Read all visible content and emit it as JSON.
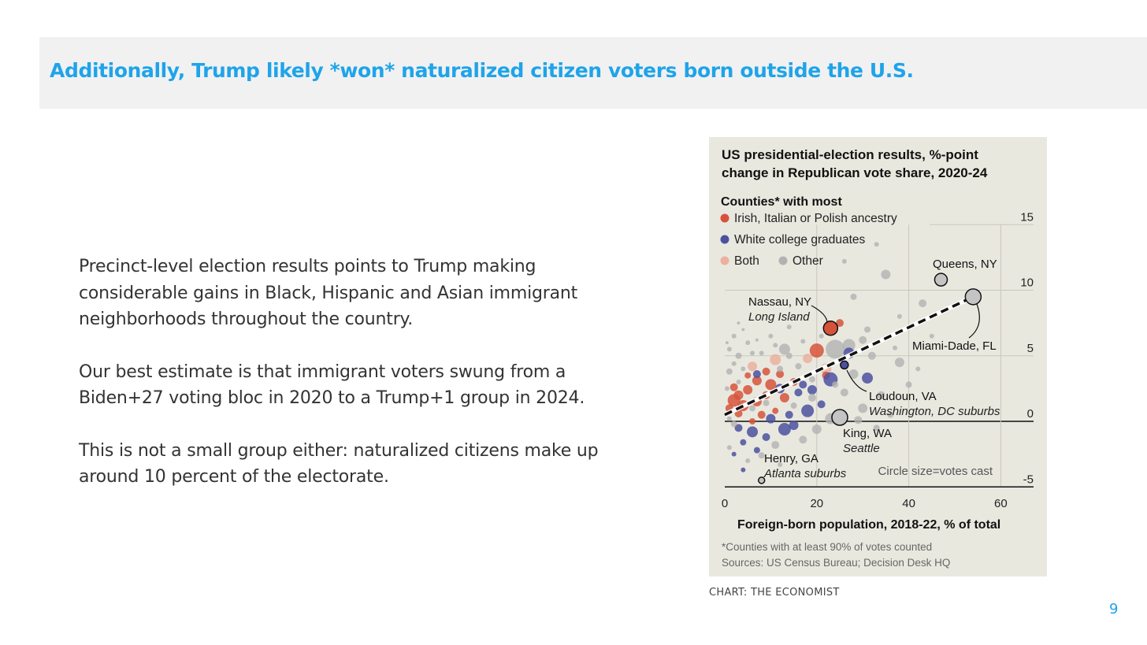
{
  "slide": {
    "title": "Additionally, Trump likely *won* naturalized citizen voters born outside the U.S.",
    "paragraphs": [
      "Precinct-level election results points to Trump making considerable gains in Black, Hispanic and Asian immigrant neighborhoods throughout the country.",
      "Our best estimate is that immigrant voters swung from a Biden+27 voting bloc in 2020 to a Trump+1 group in 2024.",
      "This is not a small group either: naturalized citizens make up around 10 percent of the electorate."
    ],
    "credit": "CHART: THE ECONOMIST",
    "page_number": "9"
  },
  "chart_data": {
    "type": "scatter",
    "title_lines": [
      "US presidential-election results, %-point",
      "change in Republican vote share, 2020-24"
    ],
    "legend_heading": "Counties* with most",
    "legend": [
      {
        "key": "irish",
        "label": "Irish, Italian or Polish ancestry",
        "color": "#d6533b"
      },
      {
        "key": "white",
        "label": "White college graduates",
        "color": "#4b51a0"
      },
      {
        "key": "both",
        "label": "Both",
        "color": "#ebb09e"
      },
      {
        "key": "other",
        "label": "Other",
        "color": "#b2b2b2"
      }
    ],
    "xlabel": "Foreign-born population, 2018-22, % of total",
    "xlim": [
      0,
      68
    ],
    "ylim": [
      -6,
      16
    ],
    "xticks": [
      {
        "v": 0,
        "label": "0"
      },
      {
        "v": 20,
        "label": "20"
      },
      {
        "v": 40,
        "label": "40"
      },
      {
        "v": 60,
        "label": "60"
      }
    ],
    "yticks": [
      {
        "v": 15,
        "label": "15"
      },
      {
        "v": 10,
        "label": "10"
      },
      {
        "v": 5,
        "label": "5"
      },
      {
        "v": 0,
        "label": "0"
      },
      {
        "v": -5,
        "label": "-5"
      }
    ],
    "size_note": "Circle size=votes cast",
    "footnote": "*Counties with at least 90% of votes counted",
    "sources": "Sources: US Census Bureau; Decision Desk HQ",
    "trend": {
      "x": [
        0,
        54
      ],
      "y": [
        0.5,
        9.5
      ],
      "style": "dashed"
    },
    "labeled": [
      {
        "name": "Queens, NY",
        "sub": "",
        "x": 47,
        "y": 10.8,
        "r": 8,
        "group": "other"
      },
      {
        "name": "Miami-Dade, FL",
        "sub": "",
        "x": 54,
        "y": 9.5,
        "r": 10,
        "group": "other"
      },
      {
        "name": "Nassau, NY",
        "sub": "Long Island",
        "x": 23,
        "y": 7.1,
        "r": 9,
        "group": "irish"
      },
      {
        "name": "Loudoun, VA",
        "sub": "Washington, DC suburbs",
        "x": 26,
        "y": 4.3,
        "r": 5,
        "group": "white"
      },
      {
        "name": "King, WA",
        "sub": "Seattle",
        "x": 25,
        "y": 0.3,
        "r": 10,
        "group": "other"
      },
      {
        "name": "Henry, GA",
        "sub": "Atlanta suburbs",
        "x": 8,
        "y": -4.5,
        "r": 4,
        "group": "other"
      }
    ],
    "points": [
      {
        "x": 33,
        "y": 13.5,
        "r": 3,
        "g": "other"
      },
      {
        "x": 26,
        "y": 12.2,
        "r": 3,
        "g": "other"
      },
      {
        "x": 35,
        "y": 11.2,
        "r": 6,
        "g": "other"
      },
      {
        "x": 43,
        "y": 9.0,
        "r": 5,
        "g": "other"
      },
      {
        "x": 28,
        "y": 9.5,
        "r": 4,
        "g": "other"
      },
      {
        "x": 38,
        "y": 8.0,
        "r": 3,
        "g": "other"
      },
      {
        "x": 31,
        "y": 7.0,
        "r": 4,
        "g": "other"
      },
      {
        "x": 25,
        "y": 7.5,
        "r": 5,
        "g": "irish"
      },
      {
        "x": 20,
        "y": 5.4,
        "r": 9,
        "g": "irish"
      },
      {
        "x": 13,
        "y": 5.5,
        "r": 7,
        "g": "other"
      },
      {
        "x": 24,
        "y": 5.5,
        "r": 12,
        "g": "other"
      },
      {
        "x": 27,
        "y": 5.8,
        "r": 8,
        "g": "other"
      },
      {
        "x": 32,
        "y": 5.0,
        "r": 5,
        "g": "other"
      },
      {
        "x": 38,
        "y": 4.5,
        "r": 6,
        "g": "other"
      },
      {
        "x": 30,
        "y": 6.2,
        "r": 5,
        "g": "other"
      },
      {
        "x": 18,
        "y": 4.8,
        "r": 6,
        "g": "both"
      },
      {
        "x": 11,
        "y": 4.7,
        "r": 7,
        "g": "both"
      },
      {
        "x": 6,
        "y": 4.2,
        "r": 6,
        "g": "both"
      },
      {
        "x": 22,
        "y": 4.0,
        "r": 7,
        "g": "both"
      },
      {
        "x": 15,
        "y": 3.0,
        "r": 5,
        "g": "irish"
      },
      {
        "x": 10,
        "y": 2.8,
        "r": 7,
        "g": "irish"
      },
      {
        "x": 7,
        "y": 3.1,
        "r": 6,
        "g": "irish"
      },
      {
        "x": 12,
        "y": 3.6,
        "r": 5,
        "g": "irish"
      },
      {
        "x": 5,
        "y": 2.4,
        "r": 6,
        "g": "irish"
      },
      {
        "x": 3,
        "y": 2.0,
        "r": 6,
        "g": "irish"
      },
      {
        "x": 2,
        "y": 1.6,
        "r": 8,
        "g": "irish"
      },
      {
        "x": 4,
        "y": 1.2,
        "r": 7,
        "g": "irish"
      },
      {
        "x": 1,
        "y": 1.0,
        "r": 5,
        "g": "irish"
      },
      {
        "x": 7,
        "y": 1.5,
        "r": 6,
        "g": "irish"
      },
      {
        "x": 9,
        "y": 2.0,
        "r": 5,
        "g": "irish"
      },
      {
        "x": 13,
        "y": 1.8,
        "r": 6,
        "g": "irish"
      },
      {
        "x": 5,
        "y": 3.5,
        "r": 4,
        "g": "irish"
      },
      {
        "x": 2,
        "y": 2.6,
        "r": 5,
        "g": "irish"
      },
      {
        "x": 3,
        "y": 0.6,
        "r": 5,
        "g": "irish"
      },
      {
        "x": 8,
        "y": 0.5,
        "r": 5,
        "g": "irish"
      },
      {
        "x": 11,
        "y": 0.8,
        "r": 4,
        "g": "irish"
      },
      {
        "x": 9,
        "y": 3.8,
        "r": 5,
        "g": "irish"
      },
      {
        "x": 6,
        "y": 0.0,
        "r": 4,
        "g": "irish"
      },
      {
        "x": 22,
        "y": 3.5,
        "r": 5,
        "g": "irish"
      },
      {
        "x": 7,
        "y": 3.6,
        "r": 5,
        "g": "white"
      },
      {
        "x": 12,
        "y": 2.5,
        "r": 6,
        "g": "white"
      },
      {
        "x": 16,
        "y": 2.2,
        "r": 5,
        "g": "white"
      },
      {
        "x": 23,
        "y": 3.2,
        "r": 9,
        "g": "white"
      },
      {
        "x": 31,
        "y": 3.3,
        "r": 7,
        "g": "white"
      },
      {
        "x": 27,
        "y": 5.2,
        "r": 7,
        "g": "white"
      },
      {
        "x": 19,
        "y": 2.4,
        "r": 6,
        "g": "white"
      },
      {
        "x": 14,
        "y": 0.5,
        "r": 5,
        "g": "white"
      },
      {
        "x": 10,
        "y": 0.2,
        "r": 6,
        "g": "white"
      },
      {
        "x": 18,
        "y": 0.8,
        "r": 8,
        "g": "white"
      },
      {
        "x": 13,
        "y": -0.6,
        "r": 8,
        "g": "white"
      },
      {
        "x": 6,
        "y": -0.8,
        "r": 7,
        "g": "white"
      },
      {
        "x": 9,
        "y": -1.2,
        "r": 5,
        "g": "white"
      },
      {
        "x": 3,
        "y": -0.5,
        "r": 5,
        "g": "white"
      },
      {
        "x": 4,
        "y": -1.6,
        "r": 4,
        "g": "white"
      },
      {
        "x": 7,
        "y": -2.2,
        "r": 4,
        "g": "white"
      },
      {
        "x": 15,
        "y": -0.3,
        "r": 6,
        "g": "white"
      },
      {
        "x": 21,
        "y": 1.3,
        "r": 5,
        "g": "white"
      },
      {
        "x": 2,
        "y": -2.5,
        "r": 3,
        "g": "white"
      },
      {
        "x": 4,
        "y": -3.7,
        "r": 3,
        "g": "white"
      },
      {
        "x": 17,
        "y": 2.8,
        "r": 5,
        "g": "white"
      },
      {
        "x": 2,
        "y": 6.5,
        "r": 3,
        "g": "other"
      },
      {
        "x": 1,
        "y": 5.5,
        "r": 3,
        "g": "other"
      },
      {
        "x": 3,
        "y": 5.0,
        "r": 4,
        "g": "other"
      },
      {
        "x": 5,
        "y": 6.0,
        "r": 3,
        "g": "other"
      },
      {
        "x": 4,
        "y": 7.0,
        "r": 2,
        "g": "other"
      },
      {
        "x": 8,
        "y": 5.2,
        "r": 3,
        "g": "other"
      },
      {
        "x": 10,
        "y": 6.5,
        "r": 3,
        "g": "other"
      },
      {
        "x": 14,
        "y": 7.2,
        "r": 3,
        "g": "other"
      },
      {
        "x": 12,
        "y": 4.0,
        "r": 4,
        "g": "other"
      },
      {
        "x": 1,
        "y": 3.8,
        "r": 4,
        "g": "other"
      },
      {
        "x": 0.5,
        "y": 2.5,
        "r": 3,
        "g": "other"
      },
      {
        "x": 2,
        "y": 4.4,
        "r": 3,
        "g": "other"
      },
      {
        "x": 6,
        "y": 5.2,
        "r": 3,
        "g": "other"
      },
      {
        "x": 16,
        "y": 4.2,
        "r": 4,
        "g": "other"
      },
      {
        "x": 17,
        "y": 6.1,
        "r": 3,
        "g": "other"
      },
      {
        "x": 19,
        "y": 3.2,
        "r": 4,
        "g": "other"
      },
      {
        "x": 21,
        "y": 6.5,
        "r": 3,
        "g": "other"
      },
      {
        "x": 28,
        "y": 3.6,
        "r": 6,
        "g": "other"
      },
      {
        "x": 34,
        "y": 2.0,
        "r": 5,
        "g": "other"
      },
      {
        "x": 30,
        "y": 1.0,
        "r": 6,
        "g": "other"
      },
      {
        "x": 36,
        "y": 0.5,
        "r": 4,
        "g": "other"
      },
      {
        "x": 40,
        "y": 2.8,
        "r": 4,
        "g": "other"
      },
      {
        "x": 23,
        "y": 0.2,
        "r": 7,
        "g": "other"
      },
      {
        "x": 20,
        "y": -0.6,
        "r": 6,
        "g": "other"
      },
      {
        "x": 17,
        "y": -1.4,
        "r": 5,
        "g": "other"
      },
      {
        "x": 11,
        "y": -1.8,
        "r": 5,
        "g": "other"
      },
      {
        "x": 8,
        "y": -2.6,
        "r": 4,
        "g": "other"
      },
      {
        "x": 12,
        "y": -3.3,
        "r": 3,
        "g": "other"
      },
      {
        "x": 5,
        "y": -3.0,
        "r": 3,
        "g": "other"
      },
      {
        "x": 1,
        "y": -2.0,
        "r": 3,
        "g": "other"
      },
      {
        "x": 2,
        "y": -0.2,
        "r": 4,
        "g": "other"
      },
      {
        "x": 6,
        "y": 1.0,
        "r": 4,
        "g": "other"
      },
      {
        "x": 26,
        "y": 2.2,
        "r": 5,
        "g": "other"
      },
      {
        "x": 29,
        "y": 0.1,
        "r": 5,
        "g": "other"
      },
      {
        "x": 33,
        "y": -0.5,
        "r": 4,
        "g": "other"
      },
      {
        "x": 15,
        "y": 1.2,
        "r": 4,
        "g": "other"
      },
      {
        "x": 19,
        "y": 1.8,
        "r": 5,
        "g": "other"
      },
      {
        "x": 9,
        "y": 1.4,
        "r": 4,
        "g": "other"
      },
      {
        "x": 14,
        "y": 5.0,
        "r": 4,
        "g": "other"
      },
      {
        "x": 3,
        "y": 3.0,
        "r": 3,
        "g": "other"
      },
      {
        "x": 1,
        "y": 0.2,
        "r": 3,
        "g": "other"
      },
      {
        "x": 4,
        "y": 4.0,
        "r": 3,
        "g": "other"
      },
      {
        "x": 0.5,
        "y": 6.0,
        "r": 2,
        "g": "other"
      },
      {
        "x": 7,
        "y": 6.2,
        "r": 2,
        "g": "other"
      },
      {
        "x": 3,
        "y": 7.5,
        "r": 2,
        "g": "other"
      },
      {
        "x": 11,
        "y": 5.8,
        "r": 3,
        "g": "other"
      },
      {
        "x": 24,
        "y": 2.8,
        "r": 4,
        "g": "other"
      },
      {
        "x": 37,
        "y": 5.6,
        "r": 3,
        "g": "other"
      },
      {
        "x": 42,
        "y": 4.0,
        "r": 3,
        "g": "other"
      },
      {
        "x": 45,
        "y": 6.5,
        "r": 3,
        "g": "other"
      }
    ]
  }
}
